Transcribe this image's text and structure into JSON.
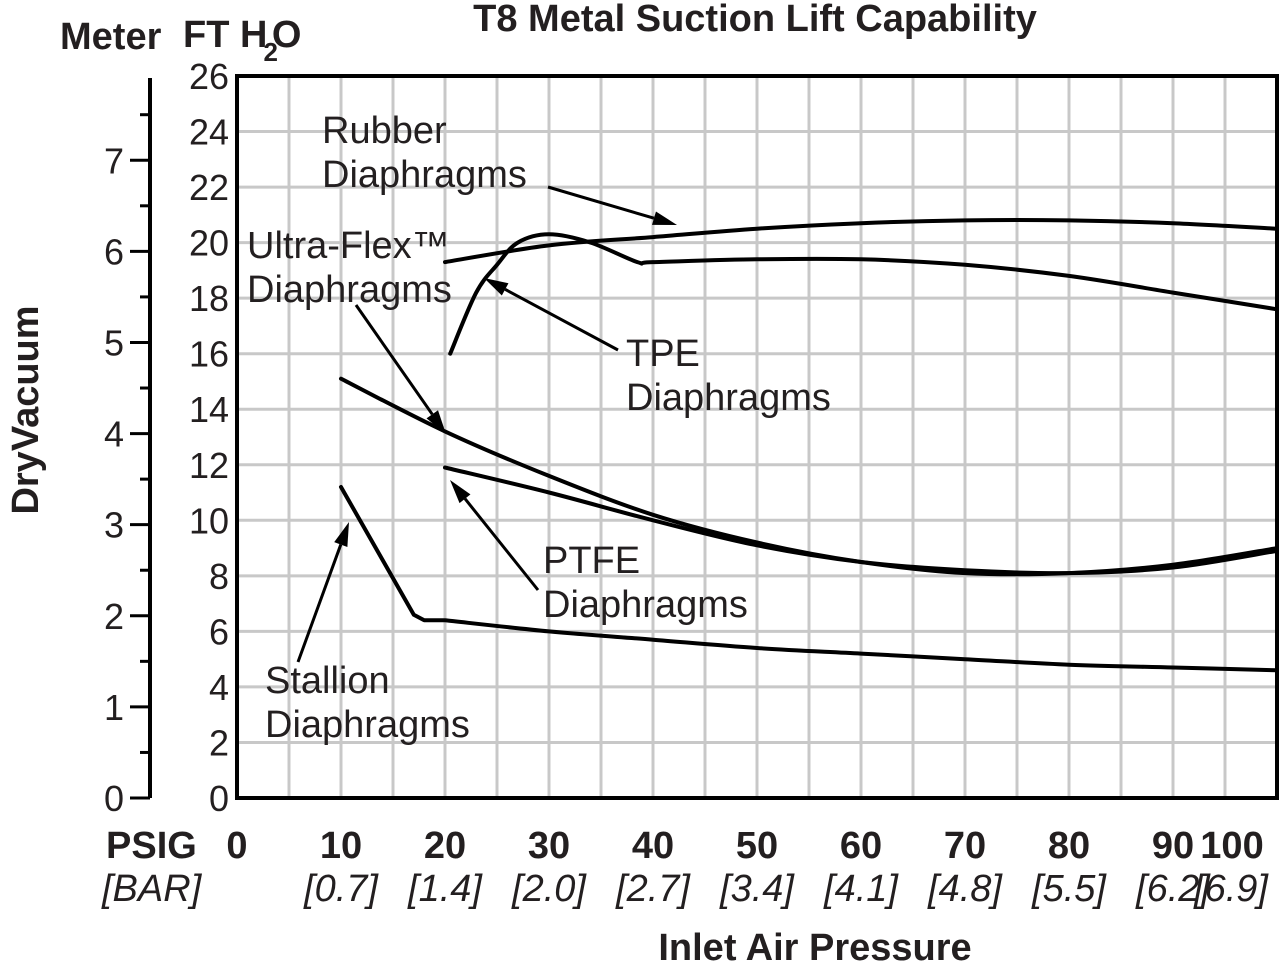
{
  "chart_data": {
    "type": "line",
    "title": "T8 Metal Suction Lift Capability",
    "xlabel": "Inlet Air Pressure",
    "ylabel": "DryVacuum",
    "y_unit_left": "Meter",
    "y_unit_right_prefix": "FT H",
    "y_unit_right_sub": "2",
    "y_unit_right_suffix": "O",
    "x_prefix_label": "PSIG",
    "x_bar_prefix_label": "[BAR]",
    "xlim": [
      0,
      100
    ],
    "ylim": [
      0,
      26
    ],
    "x_ticks": [
      "0",
      "10",
      "20",
      "30",
      "40",
      "50",
      "60",
      "70",
      "80",
      "90",
      "100"
    ],
    "x_bar_ticks": [
      "[0.7]",
      "[1.4]",
      "[2.0]",
      "[2.7]",
      "[3.4]",
      "[4.1]",
      "[4.8]",
      "[5.5]",
      "[6.2]",
      "[6.9]"
    ],
    "y_ticks_ft": [
      "0",
      "2",
      "4",
      "6",
      "8",
      "10",
      "12",
      "14",
      "16",
      "18",
      "20",
      "22",
      "24",
      "26"
    ],
    "y_ticks_meter": [
      "0",
      "1",
      "2",
      "3",
      "4",
      "5",
      "6",
      "7"
    ],
    "grid": true,
    "series": [
      {
        "name": "Rubber Diaphragms",
        "x": [
          20,
          30,
          40,
          50,
          60,
          70,
          80,
          90,
          100
        ],
        "y": [
          19.3,
          19.9,
          20.2,
          20.5,
          20.7,
          20.8,
          20.8,
          20.7,
          20.5
        ]
      },
      {
        "name": "TPE Diaphragms",
        "x": [
          20.5,
          23,
          25,
          27,
          30,
          34,
          38.5,
          40,
          50,
          60,
          70,
          80,
          90,
          100
        ],
        "y": [
          16.0,
          18.2,
          19.2,
          20.0,
          20.3,
          20.0,
          19.3,
          19.3,
          19.4,
          19.4,
          19.2,
          18.8,
          18.2,
          17.6
        ]
      },
      {
        "name": "Ultra-Flex™ Diaphragms",
        "x": [
          10,
          20,
          30,
          40,
          50,
          60,
          70,
          80,
          90,
          100
        ],
        "y": [
          15.1,
          13.2,
          11.6,
          10.2,
          9.2,
          8.5,
          8.1,
          8.1,
          8.4,
          9.0
        ]
      },
      {
        "name": "PTFE Diaphragms",
        "x": [
          20,
          30,
          40,
          50,
          60,
          70,
          80,
          90,
          100
        ],
        "y": [
          11.9,
          11.0,
          10.0,
          9.1,
          8.5,
          8.2,
          8.1,
          8.3,
          8.9
        ]
      },
      {
        "name": "Stallion Diaphragms",
        "x": [
          10,
          17,
          18,
          20,
          30,
          40,
          50,
          60,
          70,
          80,
          90,
          100
        ],
        "y": [
          11.2,
          6.6,
          6.4,
          6.4,
          6.0,
          5.7,
          5.4,
          5.2,
          5.0,
          4.8,
          4.7,
          4.6
        ]
      }
    ],
    "annotations": [
      {
        "line1": "Rubber",
        "line2": "Diaphragms"
      },
      {
        "line1": "Ultra-Flex™",
        "line2": "Diaphragms"
      },
      {
        "line1": "TPE",
        "line2": "Diaphragms"
      },
      {
        "line1": "PTFE",
        "line2": "Diaphragms"
      },
      {
        "line1": "Stallion",
        "line2": "Diaphragms"
      }
    ]
  }
}
